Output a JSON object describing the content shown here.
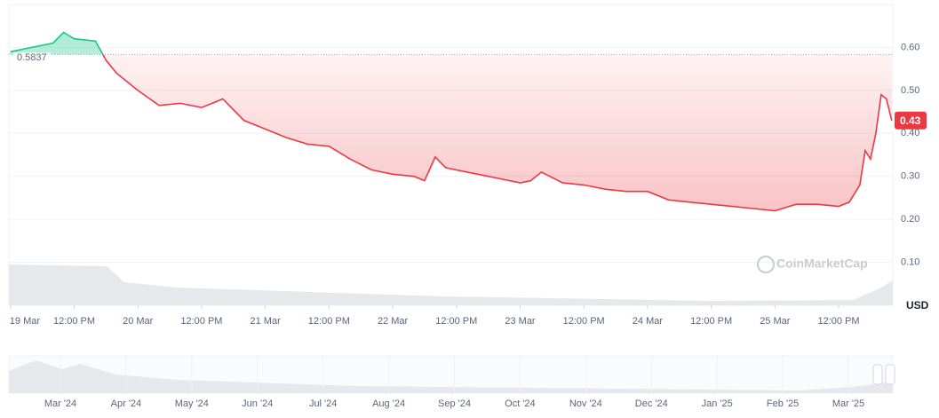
{
  "chart_data": {
    "type": "line",
    "x": [
      0,
      4,
      8,
      10,
      12,
      16,
      18,
      20,
      24,
      28,
      32,
      36,
      40,
      44,
      48,
      52,
      56,
      60,
      64,
      68,
      72,
      76,
      78,
      80,
      82,
      88,
      92,
      96,
      98,
      100,
      104,
      108,
      112,
      116,
      120,
      124,
      128,
      132,
      136,
      140,
      144,
      148,
      152,
      156,
      158,
      160,
      161,
      162,
      163,
      164,
      165,
      166
    ],
    "values": [
      0.59,
      0.6,
      0.61,
      0.635,
      0.62,
      0.615,
      0.57,
      0.54,
      0.5,
      0.465,
      0.47,
      0.46,
      0.48,
      0.43,
      0.41,
      0.39,
      0.375,
      0.37,
      0.34,
      0.315,
      0.305,
      0.3,
      0.29,
      0.345,
      0.32,
      0.305,
      0.295,
      0.285,
      0.29,
      0.31,
      0.285,
      0.28,
      0.27,
      0.265,
      0.265,
      0.245,
      0.24,
      0.235,
      0.23,
      0.225,
      0.22,
      0.235,
      0.235,
      0.23,
      0.24,
      0.28,
      0.36,
      0.34,
      0.4,
      0.49,
      0.48,
      0.43
    ],
    "baseline": 0.5837,
    "color_up": "#16c784",
    "color_down": "#ea3943",
    "xlim": [
      -0.3,
      166.2
    ],
    "xticks": [
      {
        "value": 0,
        "label": "19 Mar"
      },
      {
        "value": 12,
        "label": "12:00 PM"
      },
      {
        "value": 24,
        "label": "20 Mar"
      },
      {
        "value": 36,
        "label": "12:00 PM"
      },
      {
        "value": 48,
        "label": "21 Mar"
      },
      {
        "value": 60,
        "label": "12:00 PM"
      },
      {
        "value": 72,
        "label": "22 Mar"
      },
      {
        "value": 84,
        "label": "12:00 PM"
      },
      {
        "value": 96,
        "label": "23 Mar"
      },
      {
        "value": 108,
        "label": "12:00 PM"
      },
      {
        "value": 120,
        "label": "24 Mar"
      },
      {
        "value": 132,
        "label": "12:00 PM"
      },
      {
        "value": 144,
        "label": "25 Mar"
      },
      {
        "value": 156,
        "label": "12:00 PM"
      }
    ],
    "ylim": [
      0,
      0.7
    ],
    "yticks": [
      {
        "value": 0.1,
        "label": "0.10"
      },
      {
        "value": 0.2,
        "label": "0.20"
      },
      {
        "value": 0.3,
        "label": "0.30"
      },
      {
        "value": 0.4,
        "label": "0.40"
      },
      {
        "value": 0.5,
        "label": "0.50"
      },
      {
        "value": 0.6,
        "label": "0.60"
      }
    ],
    "y_axis_label": "USD",
    "grid": true,
    "watermark": "CoinMarketCap",
    "navigator_labels": [
      "Mar '24",
      "Apr '24",
      "May '24",
      "Jun '24",
      "Jul '24",
      "Aug '24",
      "Sep '24",
      "Oct '24",
      "Nov '24",
      "Dec '24",
      "Jan '25",
      "Feb '25",
      "Mar '25"
    ]
  }
}
